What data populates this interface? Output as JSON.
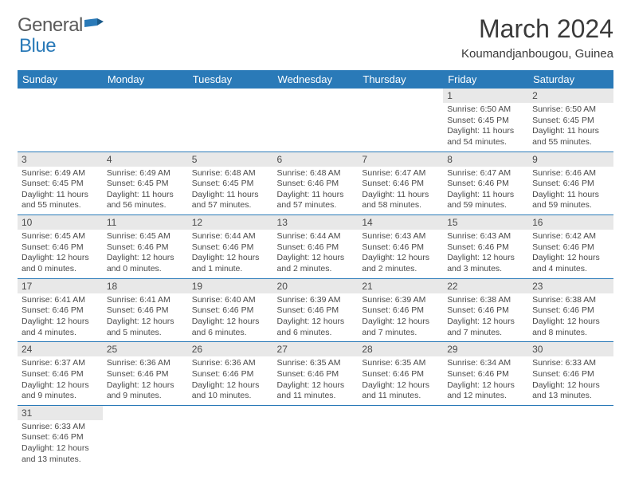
{
  "logo": {
    "general": "General",
    "blue": "Blue"
  },
  "title": "March 2024",
  "location": "Koumandjanbougou, Guinea",
  "colors": {
    "header_bg": "#2a7ab8",
    "header_text": "#ffffff",
    "daynum_bg": "#e8e8e8",
    "row_border": "#2a7ab8",
    "text": "#4a4a4a",
    "logo_gray": "#5a5a5a",
    "logo_blue": "#2a7ab8"
  },
  "day_labels": [
    "Sunday",
    "Monday",
    "Tuesday",
    "Wednesday",
    "Thursday",
    "Friday",
    "Saturday"
  ],
  "weeks": [
    [
      null,
      null,
      null,
      null,
      null,
      {
        "n": "1",
        "sr": "Sunrise: 6:50 AM",
        "ss": "Sunset: 6:45 PM",
        "d1": "Daylight: 11 hours",
        "d2": "and 54 minutes."
      },
      {
        "n": "2",
        "sr": "Sunrise: 6:50 AM",
        "ss": "Sunset: 6:45 PM",
        "d1": "Daylight: 11 hours",
        "d2": "and 55 minutes."
      }
    ],
    [
      {
        "n": "3",
        "sr": "Sunrise: 6:49 AM",
        "ss": "Sunset: 6:45 PM",
        "d1": "Daylight: 11 hours",
        "d2": "and 55 minutes."
      },
      {
        "n": "4",
        "sr": "Sunrise: 6:49 AM",
        "ss": "Sunset: 6:45 PM",
        "d1": "Daylight: 11 hours",
        "d2": "and 56 minutes."
      },
      {
        "n": "5",
        "sr": "Sunrise: 6:48 AM",
        "ss": "Sunset: 6:45 PM",
        "d1": "Daylight: 11 hours",
        "d2": "and 57 minutes."
      },
      {
        "n": "6",
        "sr": "Sunrise: 6:48 AM",
        "ss": "Sunset: 6:46 PM",
        "d1": "Daylight: 11 hours",
        "d2": "and 57 minutes."
      },
      {
        "n": "7",
        "sr": "Sunrise: 6:47 AM",
        "ss": "Sunset: 6:46 PM",
        "d1": "Daylight: 11 hours",
        "d2": "and 58 minutes."
      },
      {
        "n": "8",
        "sr": "Sunrise: 6:47 AM",
        "ss": "Sunset: 6:46 PM",
        "d1": "Daylight: 11 hours",
        "d2": "and 59 minutes."
      },
      {
        "n": "9",
        "sr": "Sunrise: 6:46 AM",
        "ss": "Sunset: 6:46 PM",
        "d1": "Daylight: 11 hours",
        "d2": "and 59 minutes."
      }
    ],
    [
      {
        "n": "10",
        "sr": "Sunrise: 6:45 AM",
        "ss": "Sunset: 6:46 PM",
        "d1": "Daylight: 12 hours",
        "d2": "and 0 minutes."
      },
      {
        "n": "11",
        "sr": "Sunrise: 6:45 AM",
        "ss": "Sunset: 6:46 PM",
        "d1": "Daylight: 12 hours",
        "d2": "and 0 minutes."
      },
      {
        "n": "12",
        "sr": "Sunrise: 6:44 AM",
        "ss": "Sunset: 6:46 PM",
        "d1": "Daylight: 12 hours",
        "d2": "and 1 minute."
      },
      {
        "n": "13",
        "sr": "Sunrise: 6:44 AM",
        "ss": "Sunset: 6:46 PM",
        "d1": "Daylight: 12 hours",
        "d2": "and 2 minutes."
      },
      {
        "n": "14",
        "sr": "Sunrise: 6:43 AM",
        "ss": "Sunset: 6:46 PM",
        "d1": "Daylight: 12 hours",
        "d2": "and 2 minutes."
      },
      {
        "n": "15",
        "sr": "Sunrise: 6:43 AM",
        "ss": "Sunset: 6:46 PM",
        "d1": "Daylight: 12 hours",
        "d2": "and 3 minutes."
      },
      {
        "n": "16",
        "sr": "Sunrise: 6:42 AM",
        "ss": "Sunset: 6:46 PM",
        "d1": "Daylight: 12 hours",
        "d2": "and 4 minutes."
      }
    ],
    [
      {
        "n": "17",
        "sr": "Sunrise: 6:41 AM",
        "ss": "Sunset: 6:46 PM",
        "d1": "Daylight: 12 hours",
        "d2": "and 4 minutes."
      },
      {
        "n": "18",
        "sr": "Sunrise: 6:41 AM",
        "ss": "Sunset: 6:46 PM",
        "d1": "Daylight: 12 hours",
        "d2": "and 5 minutes."
      },
      {
        "n": "19",
        "sr": "Sunrise: 6:40 AM",
        "ss": "Sunset: 6:46 PM",
        "d1": "Daylight: 12 hours",
        "d2": "and 6 minutes."
      },
      {
        "n": "20",
        "sr": "Sunrise: 6:39 AM",
        "ss": "Sunset: 6:46 PM",
        "d1": "Daylight: 12 hours",
        "d2": "and 6 minutes."
      },
      {
        "n": "21",
        "sr": "Sunrise: 6:39 AM",
        "ss": "Sunset: 6:46 PM",
        "d1": "Daylight: 12 hours",
        "d2": "and 7 minutes."
      },
      {
        "n": "22",
        "sr": "Sunrise: 6:38 AM",
        "ss": "Sunset: 6:46 PM",
        "d1": "Daylight: 12 hours",
        "d2": "and 7 minutes."
      },
      {
        "n": "23",
        "sr": "Sunrise: 6:38 AM",
        "ss": "Sunset: 6:46 PM",
        "d1": "Daylight: 12 hours",
        "d2": "and 8 minutes."
      }
    ],
    [
      {
        "n": "24",
        "sr": "Sunrise: 6:37 AM",
        "ss": "Sunset: 6:46 PM",
        "d1": "Daylight: 12 hours",
        "d2": "and 9 minutes."
      },
      {
        "n": "25",
        "sr": "Sunrise: 6:36 AM",
        "ss": "Sunset: 6:46 PM",
        "d1": "Daylight: 12 hours",
        "d2": "and 9 minutes."
      },
      {
        "n": "26",
        "sr": "Sunrise: 6:36 AM",
        "ss": "Sunset: 6:46 PM",
        "d1": "Daylight: 12 hours",
        "d2": "and 10 minutes."
      },
      {
        "n": "27",
        "sr": "Sunrise: 6:35 AM",
        "ss": "Sunset: 6:46 PM",
        "d1": "Daylight: 12 hours",
        "d2": "and 11 minutes."
      },
      {
        "n": "28",
        "sr": "Sunrise: 6:35 AM",
        "ss": "Sunset: 6:46 PM",
        "d1": "Daylight: 12 hours",
        "d2": "and 11 minutes."
      },
      {
        "n": "29",
        "sr": "Sunrise: 6:34 AM",
        "ss": "Sunset: 6:46 PM",
        "d1": "Daylight: 12 hours",
        "d2": "and 12 minutes."
      },
      {
        "n": "30",
        "sr": "Sunrise: 6:33 AM",
        "ss": "Sunset: 6:46 PM",
        "d1": "Daylight: 12 hours",
        "d2": "and 13 minutes."
      }
    ],
    [
      {
        "n": "31",
        "sr": "Sunrise: 6:33 AM",
        "ss": "Sunset: 6:46 PM",
        "d1": "Daylight: 12 hours",
        "d2": "and 13 minutes."
      },
      null,
      null,
      null,
      null,
      null,
      null
    ]
  ]
}
